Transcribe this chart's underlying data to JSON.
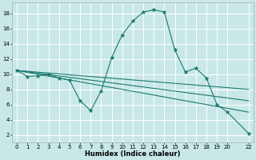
{
  "title": "",
  "xlabel": "Humidex (Indice chaleur)",
  "background_color": "#c8e8e8",
  "grid_color": "#ffffff",
  "line_color": "#1a7a6e",
  "xlim": [
    -0.5,
    22.5
  ],
  "ylim": [
    1.0,
    19.5
  ],
  "xticks": [
    0,
    1,
    2,
    3,
    4,
    5,
    6,
    7,
    8,
    9,
    10,
    11,
    12,
    13,
    14,
    15,
    16,
    17,
    18,
    19,
    20,
    22
  ],
  "yticks": [
    2,
    4,
    6,
    8,
    10,
    12,
    14,
    16,
    18
  ],
  "lines": [
    {
      "x": [
        0,
        1,
        2,
        3,
        4,
        5,
        6,
        7,
        8,
        9,
        10,
        11,
        12,
        13,
        14,
        15,
        16,
        17,
        18,
        19,
        20,
        22
      ],
      "y": [
        10.5,
        9.7,
        9.8,
        10.0,
        9.5,
        9.2,
        6.5,
        5.2,
        7.8,
        12.2,
        15.2,
        17.0,
        18.2,
        18.5,
        18.2,
        13.2,
        10.3,
        10.8,
        9.5,
        6.0,
        5.0,
        2.2
      ],
      "marker": true
    },
    {
      "x": [
        0,
        22
      ],
      "y": [
        10.5,
        8.0
      ],
      "marker": false
    },
    {
      "x": [
        0,
        22
      ],
      "y": [
        10.5,
        6.5
      ],
      "marker": false
    },
    {
      "x": [
        0,
        22
      ],
      "y": [
        10.5,
        5.0
      ],
      "marker": false
    }
  ],
  "tick_fontsize": 5.0,
  "xlabel_fontsize": 6.0
}
